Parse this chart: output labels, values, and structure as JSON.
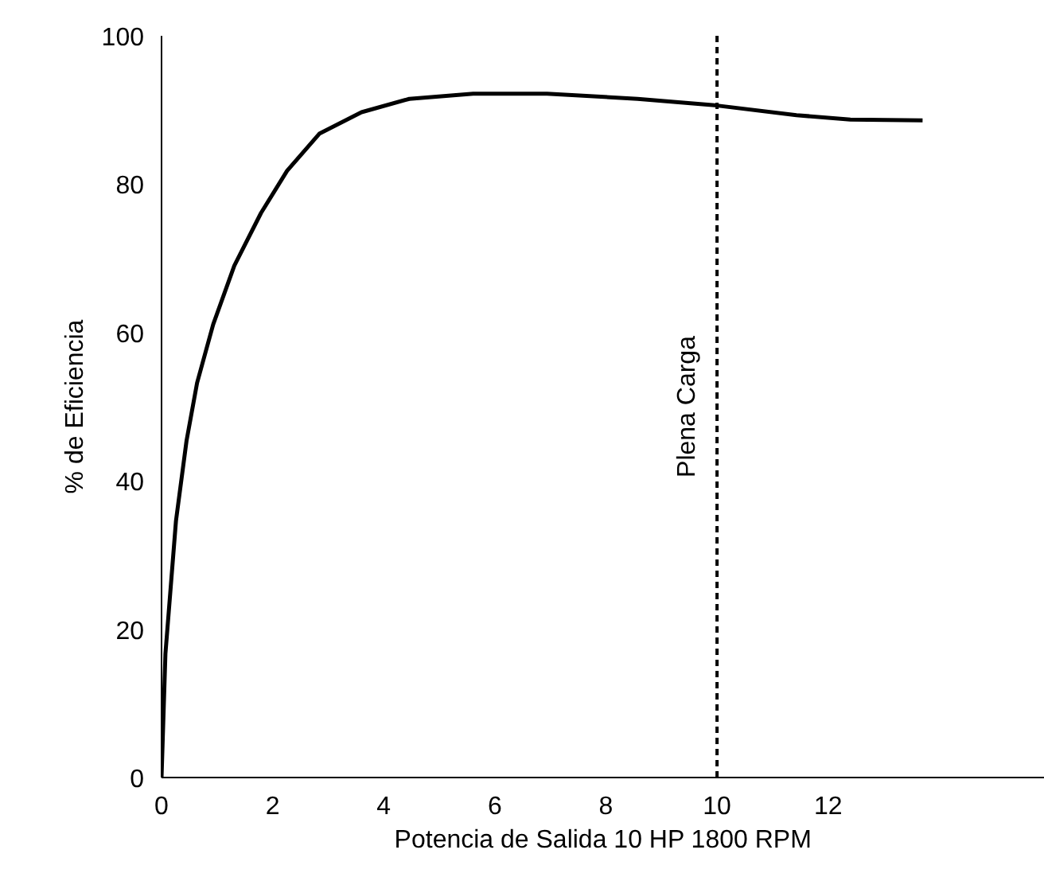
{
  "chart_data": {
    "type": "line",
    "xlabel": "Potencia de Salida 10 HP 1800 RPM",
    "ylabel": "% de Eficiencia",
    "x": [
      0,
      0.07,
      0.26,
      0.45,
      0.64,
      0.93,
      1.31,
      1.79,
      2.26,
      2.84,
      3.6,
      4.46,
      5.61,
      6.94,
      8.57,
      10,
      11.43,
      12.4,
      13.7
    ],
    "series": [
      {
        "color": "#000000",
        "values": [
          0,
          16.7,
          34.6,
          45.4,
          53.2,
          61.1,
          69,
          76.1,
          81.8,
          86.8,
          89.7,
          91.5,
          92.2,
          92.2,
          91.5,
          90.6,
          89.3,
          88.7,
          88.6
        ]
      }
    ],
    "xlim": [
      0,
      15.9
    ],
    "ylim": [
      0,
      100
    ],
    "xticks": [
      0,
      2,
      4,
      6,
      8,
      10,
      12
    ],
    "yticks": [
      0,
      20,
      40,
      60,
      80,
      100
    ],
    "ref_lines": [
      {
        "axis": "x",
        "value": 10,
        "label": "Plena Carga",
        "color": "#000000",
        "line_style": "dashed"
      }
    ],
    "marker": "none",
    "line_style": "solid"
  }
}
